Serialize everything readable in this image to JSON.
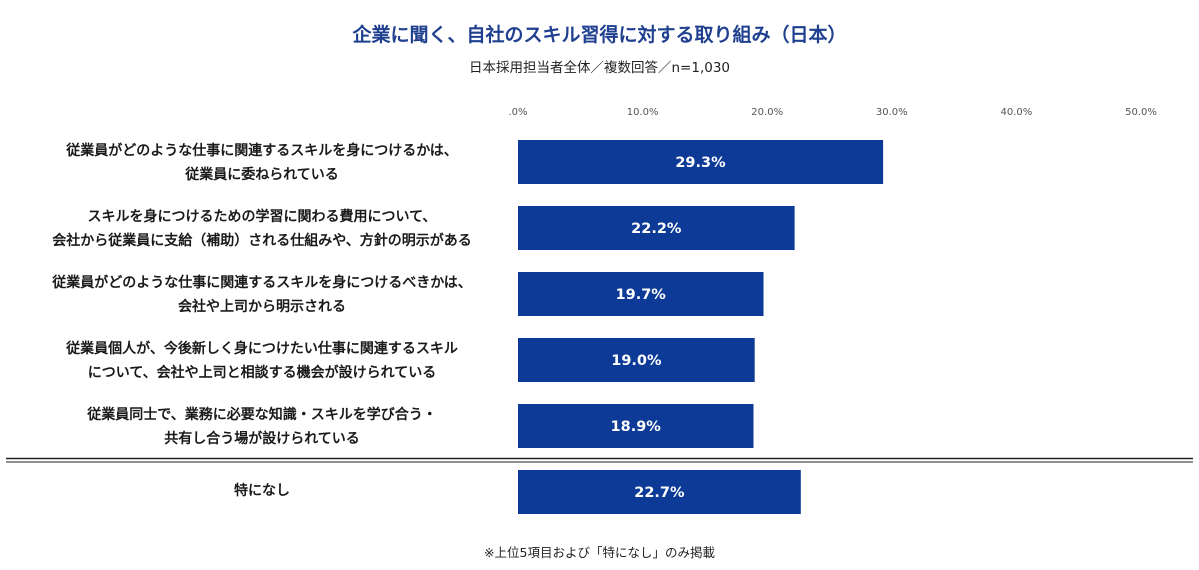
{
  "chart_data": {
    "type": "bar",
    "orientation": "horizontal",
    "title": "企業に聞く、自社のスキル習得に対する取り組み（日本）",
    "subtitle": "日本採用担当者全体／複数回答／n=1,030",
    "x_ticks": [
      ".0%",
      "10.0%",
      "20.0%",
      "30.0%",
      "40.0%",
      "50.0%"
    ],
    "xlim": [
      0,
      50
    ],
    "categories": [
      [
        "従業員がどのような仕事に関連するスキルを身につけるかは、",
        "従業員に委ねられている"
      ],
      [
        "スキルを身につけるための学習に関わる費用について、",
        "会社から従業員に支給（補助）される仕組みや、方針の明示がある"
      ],
      [
        "従業員がどのような仕事に関連するスキルを身につけるべきかは、",
        "会社や上司から明示される"
      ],
      [
        "従業員個人が、今後新しく身につけたい仕事に関連するスキル",
        "について、会社や上司と相談する機会が設けられている"
      ],
      [
        "従業員同士で、業務に必要な知識・スキルを学び合う・",
        "共有し合う場が設けられている"
      ],
      [
        "特になし"
      ]
    ],
    "values": [
      29.3,
      22.2,
      19.7,
      19.0,
      18.9,
      22.7
    ],
    "value_labels": [
      "29.3%",
      "22.2%",
      "19.7%",
      "19.0%",
      "18.9%",
      "22.7%"
    ],
    "bar_color": "#0d3a96",
    "footnote": "※上位5項目および「特になし」のみ掲載"
  }
}
